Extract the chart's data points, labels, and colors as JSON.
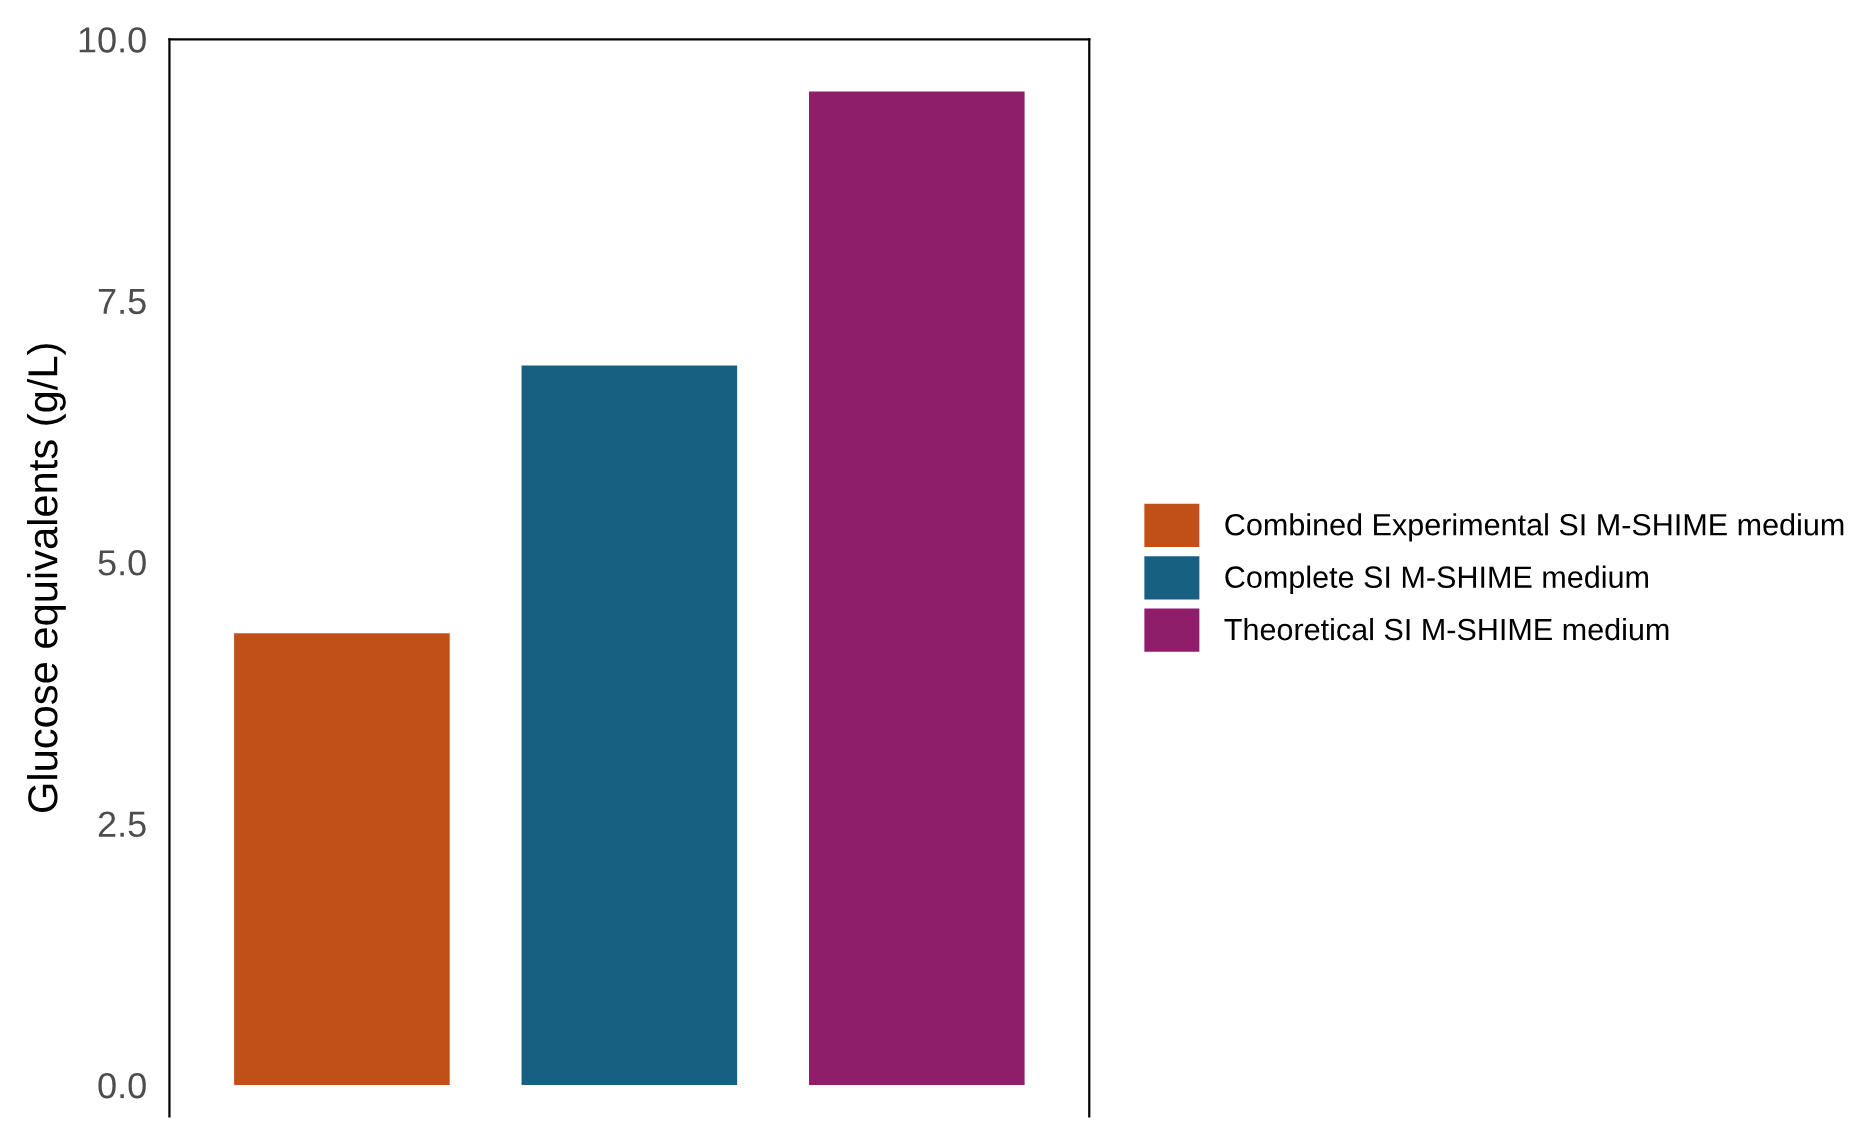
{
  "chart_data": {
    "type": "bar",
    "ylabel": "Glucose equivalents (g/L)",
    "categories": [
      null,
      null,
      null
    ],
    "series": [
      {
        "name": "Combined Experimental SI M-SHIME medium",
        "color": "#c05017",
        "values": [
          4.32,
          null,
          null
        ]
      },
      {
        "name": "Complete SI M-SHIME medium",
        "color": "#176082",
        "values": [
          null,
          6.88,
          null
        ]
      },
      {
        "name": "Theoretical SI M-SHIME medium",
        "color": "#8e1e6a",
        "values": [
          null,
          null,
          9.5
        ]
      }
    ],
    "ylim": [
      -0.3,
      10.0
    ],
    "yticks": [
      {
        "value": 0,
        "label": "0.0"
      },
      {
        "value": 2.5,
        "label": "2.5"
      },
      {
        "value": 5,
        "label": "5.0"
      },
      {
        "value": 7.5,
        "label": "7.5"
      },
      {
        "value": 10,
        "label": "10.0"
      }
    ],
    "grid": false,
    "legend": "right",
    "tick_labels": "y"
  }
}
